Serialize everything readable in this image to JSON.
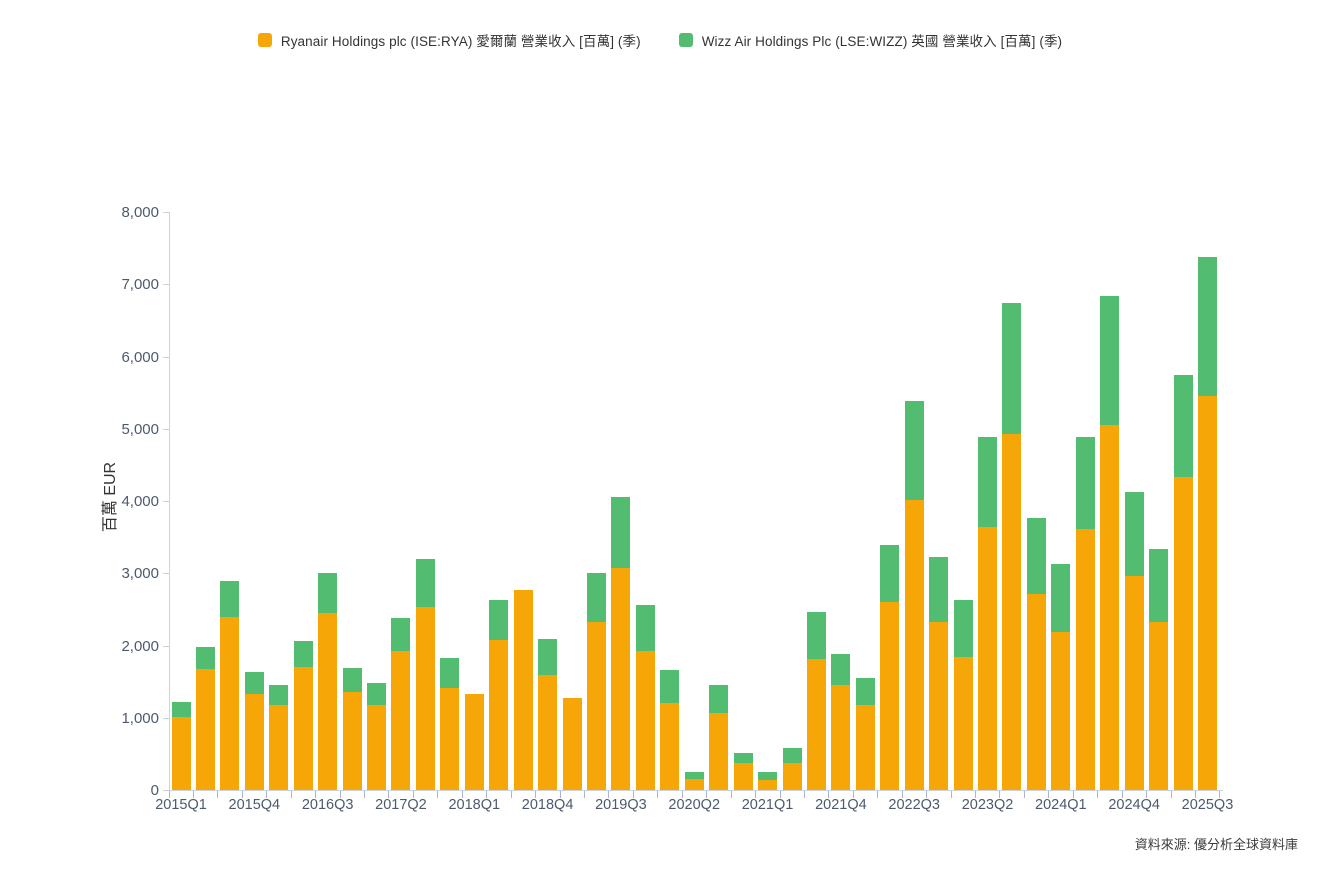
{
  "source_note": "資料來源: 優分析全球資料庫",
  "chart_data": {
    "type": "bar",
    "stacked": true,
    "title": "",
    "xlabel": "",
    "ylabel": "百萬 EUR",
    "ylim": [
      0,
      8000
    ],
    "ytick_step": 1000,
    "xtick_label_every": 3,
    "grid": false,
    "legend_position": "top-center",
    "categories": [
      "2015Q1",
      "2015Q2",
      "2015Q3",
      "2015Q4",
      "2016Q1",
      "2016Q2",
      "2016Q3",
      "2016Q4",
      "2017Q1",
      "2017Q2",
      "2017Q3",
      "2017Q4",
      "2018Q1",
      "2018Q2",
      "2018Q3",
      "2018Q4",
      "2019Q1",
      "2019Q2",
      "2019Q3",
      "2019Q4",
      "2020Q1",
      "2020Q2",
      "2020Q3",
      "2020Q4",
      "2021Q1",
      "2021Q2",
      "2021Q3",
      "2021Q4",
      "2022Q1",
      "2022Q2",
      "2022Q3",
      "2022Q4",
      "2023Q1",
      "2023Q2",
      "2023Q3",
      "2023Q4",
      "2024Q1",
      "2024Q2",
      "2024Q3",
      "2024Q4",
      "2025Q1",
      "2025Q2",
      "2025Q3"
    ],
    "series": [
      {
        "name": "Ryanair Holdings plc (ISE:RYA) 愛爾蘭 營業收入 [百萬] (季)",
        "color": "#F7A608",
        "values": [
          1005,
          1670,
          2400,
          1330,
          1175,
          1700,
          2450,
          1350,
          1180,
          1930,
          2530,
          1410,
          1330,
          2080,
          2765,
          1590,
          1275,
          2320,
          3075,
          1925,
          1200,
          155,
          1060,
          380,
          135,
          370,
          1810,
          1455,
          1180,
          2600,
          4010,
          2330,
          1840,
          3640,
          4930,
          2710,
          2180,
          3610,
          5050,
          2960,
          2320,
          4330,
          5460
        ]
      },
      {
        "name": "Wizz Air Holdings Plc (LSE:WIZZ) 英國 營業收入 [百萬] (季)",
        "color": "#52BD71",
        "values": [
          215,
          310,
          490,
          300,
          280,
          360,
          550,
          340,
          300,
          450,
          670,
          420,
          0,
          550,
          0,
          500,
          0,
          680,
          985,
          630,
          455,
          95,
          390,
          130,
          120,
          215,
          650,
          430,
          375,
          790,
          1375,
          890,
          790,
          1245,
          1815,
          1055,
          950,
          1270,
          1790,
          1170,
          1020,
          1420,
          1920
        ]
      }
    ]
  }
}
